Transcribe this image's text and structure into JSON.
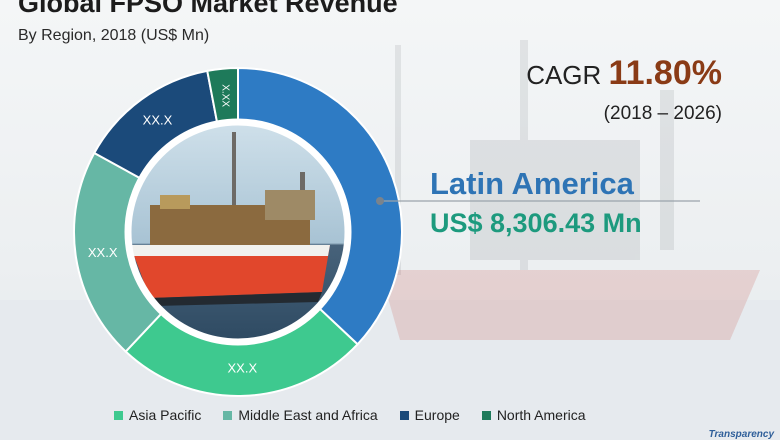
{
  "title": "Global FPSO Market Revenue",
  "subtitle": "By Region, 2018 (US$ Mn)",
  "cagr": {
    "label": "CAGR",
    "value": "11.80%",
    "period": "(2018 – 2026)"
  },
  "highlight": {
    "region": "Latin America",
    "value": "US$ 8,306.43 Mn"
  },
  "brand": "Transparency",
  "colors": {
    "latin_america": "#2e7bc4",
    "asia_pacific": "#3ec98f",
    "middle_east_africa": "#66b7a5",
    "europe": "#1b4a7a",
    "north_america": "#1e7a5a"
  },
  "chart_data": {
    "type": "pie",
    "style": "donut",
    "slices": [
      {
        "name": "Latin America",
        "value": 37,
        "label": "",
        "color": "#2e7bc4"
      },
      {
        "name": "Asia Pacific",
        "value": 25,
        "label": "XX.X",
        "color": "#3ec98f"
      },
      {
        "name": "Middle East and Africa",
        "value": 21,
        "label": "XX.X",
        "color": "#66b7a5"
      },
      {
        "name": "Europe",
        "value": 14,
        "label": "XX.X",
        "color": "#1b4a7a"
      },
      {
        "name": "North America",
        "value": 3,
        "label": "X.XX",
        "color": "#1e7a5a"
      }
    ],
    "legend": [
      {
        "name": "Asia Pacific",
        "color": "#3ec98f"
      },
      {
        "name": "Middle East and Africa",
        "color": "#66b7a5"
      },
      {
        "name": "Europe",
        "color": "#1b4a7a"
      },
      {
        "name": "North America",
        "color": "#1e7a5a"
      }
    ],
    "legend_position": "bottom"
  }
}
